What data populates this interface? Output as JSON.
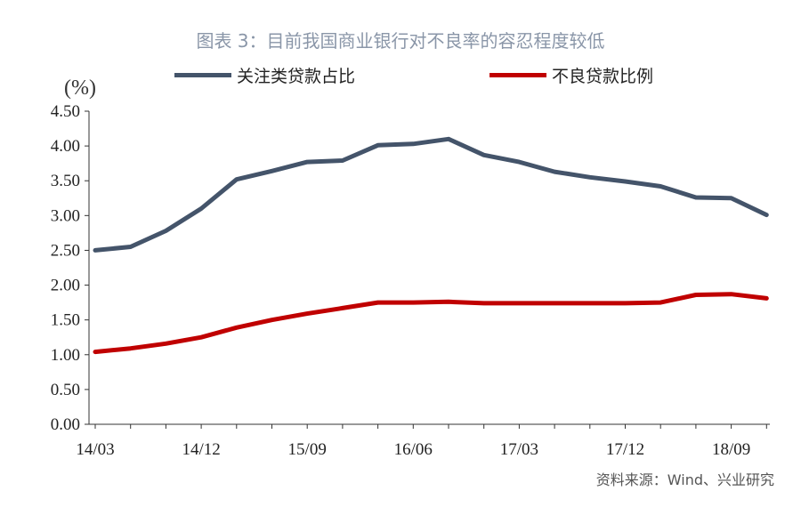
{
  "title": "图表 3：目前我国商业银行对不良率的容忍程度较低",
  "unit_label": "(%)",
  "source": "资料来源：Wind、兴业研究",
  "chart_data": {
    "type": "line",
    "title": "图表 3：目前我国商业银行对不良率的容忍程度较低",
    "xlabel": "",
    "ylabel": "(%)",
    "ylim": [
      0,
      4.5
    ],
    "y_ticks": [
      "0.00",
      "0.50",
      "1.00",
      "1.50",
      "2.00",
      "2.50",
      "3.00",
      "3.50",
      "4.00",
      "4.50"
    ],
    "x_tick_labels": [
      "14/03",
      "14/12",
      "15/09",
      "16/06",
      "17/03",
      "17/12",
      "18/09"
    ],
    "categories": [
      "14/03",
      "14/06",
      "14/09",
      "14/12",
      "15/03",
      "15/06",
      "15/09",
      "15/12",
      "16/03",
      "16/06",
      "16/09",
      "16/12",
      "17/03",
      "17/06",
      "17/09",
      "17/12",
      "18/03",
      "18/06",
      "18/09",
      "18/12"
    ],
    "grid": false,
    "legend_position": "top",
    "series": [
      {
        "name": "关注类贷款占比",
        "color": "#44546a",
        "values": [
          2.5,
          2.55,
          2.78,
          3.1,
          3.52,
          3.64,
          3.77,
          3.79,
          4.01,
          4.03,
          4.1,
          3.87,
          3.77,
          3.63,
          3.55,
          3.49,
          3.42,
          3.26,
          3.25,
          3.01
        ]
      },
      {
        "name": "不良贷款比例",
        "color": "#c00000",
        "values": [
          1.04,
          1.09,
          1.16,
          1.25,
          1.39,
          1.5,
          1.59,
          1.67,
          1.75,
          1.75,
          1.76,
          1.74,
          1.74,
          1.74,
          1.74,
          1.74,
          1.75,
          1.86,
          1.87,
          1.81
        ]
      }
    ]
  }
}
